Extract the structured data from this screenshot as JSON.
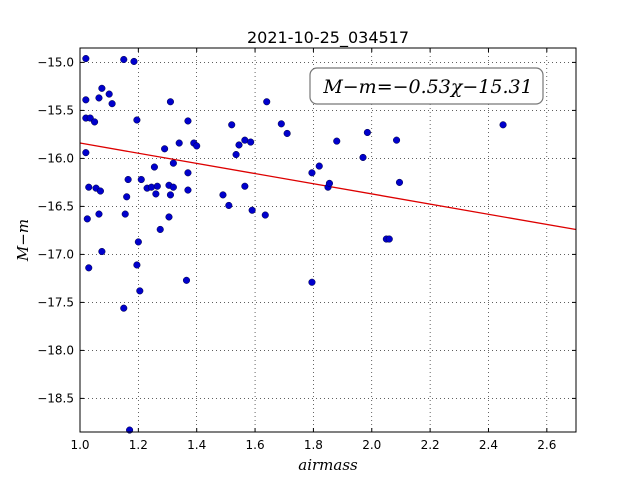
{
  "chart_data": {
    "type": "scatter",
    "title": "2021-10-25_034517",
    "xlabel": "airmass",
    "ylabel": "M−m",
    "xlim": [
      1.0,
      2.7
    ],
    "ylim": [
      -18.85,
      -14.85
    ],
    "ylim_note": "y axis inverted: -15.0 at top, -18.5 near bottom",
    "xticks": [
      "1.0",
      "1.2",
      "1.4",
      "1.6",
      "1.8",
      "2.0",
      "2.2",
      "2.4",
      "2.6"
    ],
    "yticks": [
      "−15.0",
      "−15.5",
      "−16.0",
      "−16.5",
      "−17.0",
      "−17.5",
      "−18.0",
      "−18.5"
    ],
    "xtick_values": [
      1.0,
      1.2,
      1.4,
      1.6,
      1.8,
      2.0,
      2.2,
      2.4,
      2.6
    ],
    "ytick_values": [
      -15.0,
      -15.5,
      -16.0,
      -16.5,
      -17.0,
      -17.5,
      -18.0,
      -18.5
    ],
    "grid": true,
    "point_color": "#0000cc",
    "fit_color": "#dd0000",
    "fit": {
      "slope": -0.53,
      "intercept": -15.31,
      "label": "M−m=−0.53χ−15.31"
    },
    "points": [
      {
        "x": 1.02,
        "y": -14.96
      },
      {
        "x": 1.15,
        "y": -14.97
      },
      {
        "x": 1.185,
        "y": -14.99
      },
      {
        "x": 1.02,
        "y": -15.39
      },
      {
        "x": 1.065,
        "y": -15.37
      },
      {
        "x": 1.075,
        "y": -15.27
      },
      {
        "x": 1.1,
        "y": -15.33
      },
      {
        "x": 1.11,
        "y": -15.43
      },
      {
        "x": 1.02,
        "y": -15.58
      },
      {
        "x": 1.035,
        "y": -15.58
      },
      {
        "x": 1.05,
        "y": -15.62
      },
      {
        "x": 1.195,
        "y": -15.6
      },
      {
        "x": 1.31,
        "y": -15.41
      },
      {
        "x": 1.02,
        "y": -15.94
      },
      {
        "x": 1.03,
        "y": -16.3
      },
      {
        "x": 1.055,
        "y": -16.31
      },
      {
        "x": 1.07,
        "y": -16.34
      },
      {
        "x": 1.025,
        "y": -16.63
      },
      {
        "x": 1.065,
        "y": -16.58
      },
      {
        "x": 1.075,
        "y": -16.97
      },
      {
        "x": 1.03,
        "y": -17.14
      },
      {
        "x": 1.165,
        "y": -16.22
      },
      {
        "x": 1.16,
        "y": -16.4
      },
      {
        "x": 1.155,
        "y": -16.58
      },
      {
        "x": 1.2,
        "y": -16.87
      },
      {
        "x": 1.195,
        "y": -17.11
      },
      {
        "x": 1.205,
        "y": -17.38
      },
      {
        "x": 1.15,
        "y": -17.56
      },
      {
        "x": 1.17,
        "y": -18.83
      },
      {
        "x": 1.21,
        "y": -16.22
      },
      {
        "x": 1.23,
        "y": -16.31
      },
      {
        "x": 1.245,
        "y": -16.3
      },
      {
        "x": 1.255,
        "y": -16.09
      },
      {
        "x": 1.26,
        "y": -16.37
      },
      {
        "x": 1.265,
        "y": -16.29
      },
      {
        "x": 1.275,
        "y": -16.74
      },
      {
        "x": 1.29,
        "y": -15.9
      },
      {
        "x": 1.305,
        "y": -16.28
      },
      {
        "x": 1.31,
        "y": -16.38
      },
      {
        "x": 1.32,
        "y": -16.3
      },
      {
        "x": 1.305,
        "y": -16.61
      },
      {
        "x": 1.32,
        "y": -16.05
      },
      {
        "x": 1.34,
        "y": -15.84
      },
      {
        "x": 1.37,
        "y": -15.61
      },
      {
        "x": 1.37,
        "y": -16.15
      },
      {
        "x": 1.37,
        "y": -16.33
      },
      {
        "x": 1.365,
        "y": -17.27
      },
      {
        "x": 1.39,
        "y": -15.84
      },
      {
        "x": 1.4,
        "y": -15.87
      },
      {
        "x": 1.49,
        "y": -16.38
      },
      {
        "x": 1.51,
        "y": -16.49
      },
      {
        "x": 1.52,
        "y": -15.65
      },
      {
        "x": 1.535,
        "y": -15.96
      },
      {
        "x": 1.545,
        "y": -15.86
      },
      {
        "x": 1.565,
        "y": -15.81
      },
      {
        "x": 1.565,
        "y": -16.29
      },
      {
        "x": 1.585,
        "y": -15.83
      },
      {
        "x": 1.59,
        "y": -16.54
      },
      {
        "x": 1.635,
        "y": -16.59
      },
      {
        "x": 1.64,
        "y": -15.41
      },
      {
        "x": 1.69,
        "y": -15.64
      },
      {
        "x": 1.71,
        "y": -15.74
      },
      {
        "x": 1.795,
        "y": -16.15
      },
      {
        "x": 1.795,
        "y": -17.29
      },
      {
        "x": 1.82,
        "y": -16.08
      },
      {
        "x": 1.85,
        "y": -16.3
      },
      {
        "x": 1.855,
        "y": -16.26
      },
      {
        "x": 1.88,
        "y": -15.82
      },
      {
        "x": 1.97,
        "y": -15.99
      },
      {
        "x": 1.985,
        "y": -15.73
      },
      {
        "x": 2.05,
        "y": -16.84
      },
      {
        "x": 2.06,
        "y": -16.84
      },
      {
        "x": 2.085,
        "y": -15.81
      },
      {
        "x": 2.095,
        "y": -16.25
      },
      {
        "x": 2.45,
        "y": -15.65
      }
    ]
  }
}
